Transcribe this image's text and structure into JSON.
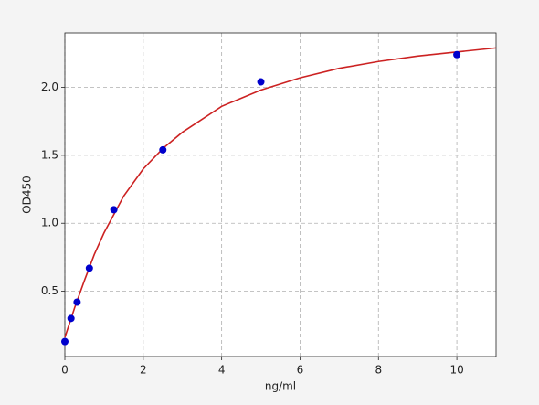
{
  "chart_data": {
    "type": "scatter",
    "x_label": "ng/ml",
    "y_label": "OD450",
    "xlim": [
      0,
      11
    ],
    "ylim": [
      0.02,
      2.4
    ],
    "xticks": [
      0,
      2,
      4,
      6,
      8,
      10
    ],
    "yticks": [
      0.5,
      {
        "value": 1,
        "label": "1.0"
      },
      1.5,
      {
        "value": 2,
        "label": "2.0"
      }
    ],
    "grid": true,
    "series": [
      {
        "type": "scatter",
        "color": "#0000cc",
        "x": [
          0,
          0.156,
          0.312,
          0.625,
          1.25,
          2.5,
          5,
          10
        ],
        "values": [
          0.13,
          0.3,
          0.42,
          0.67,
          1.1,
          1.54,
          2.04,
          2.24
        ]
      },
      {
        "type": "line",
        "color": "#cc2222",
        "x": [
          0,
          0.25,
          0.5,
          0.75,
          1,
          1.5,
          2,
          2.5,
          3,
          4,
          5,
          6,
          7,
          8,
          9,
          10,
          11
        ],
        "values": [
          0.16,
          0.38,
          0.58,
          0.77,
          0.93,
          1.2,
          1.4,
          1.55,
          1.67,
          1.86,
          1.98,
          2.07,
          2.14,
          2.19,
          2.23,
          2.26,
          2.29
        ]
      }
    ]
  }
}
